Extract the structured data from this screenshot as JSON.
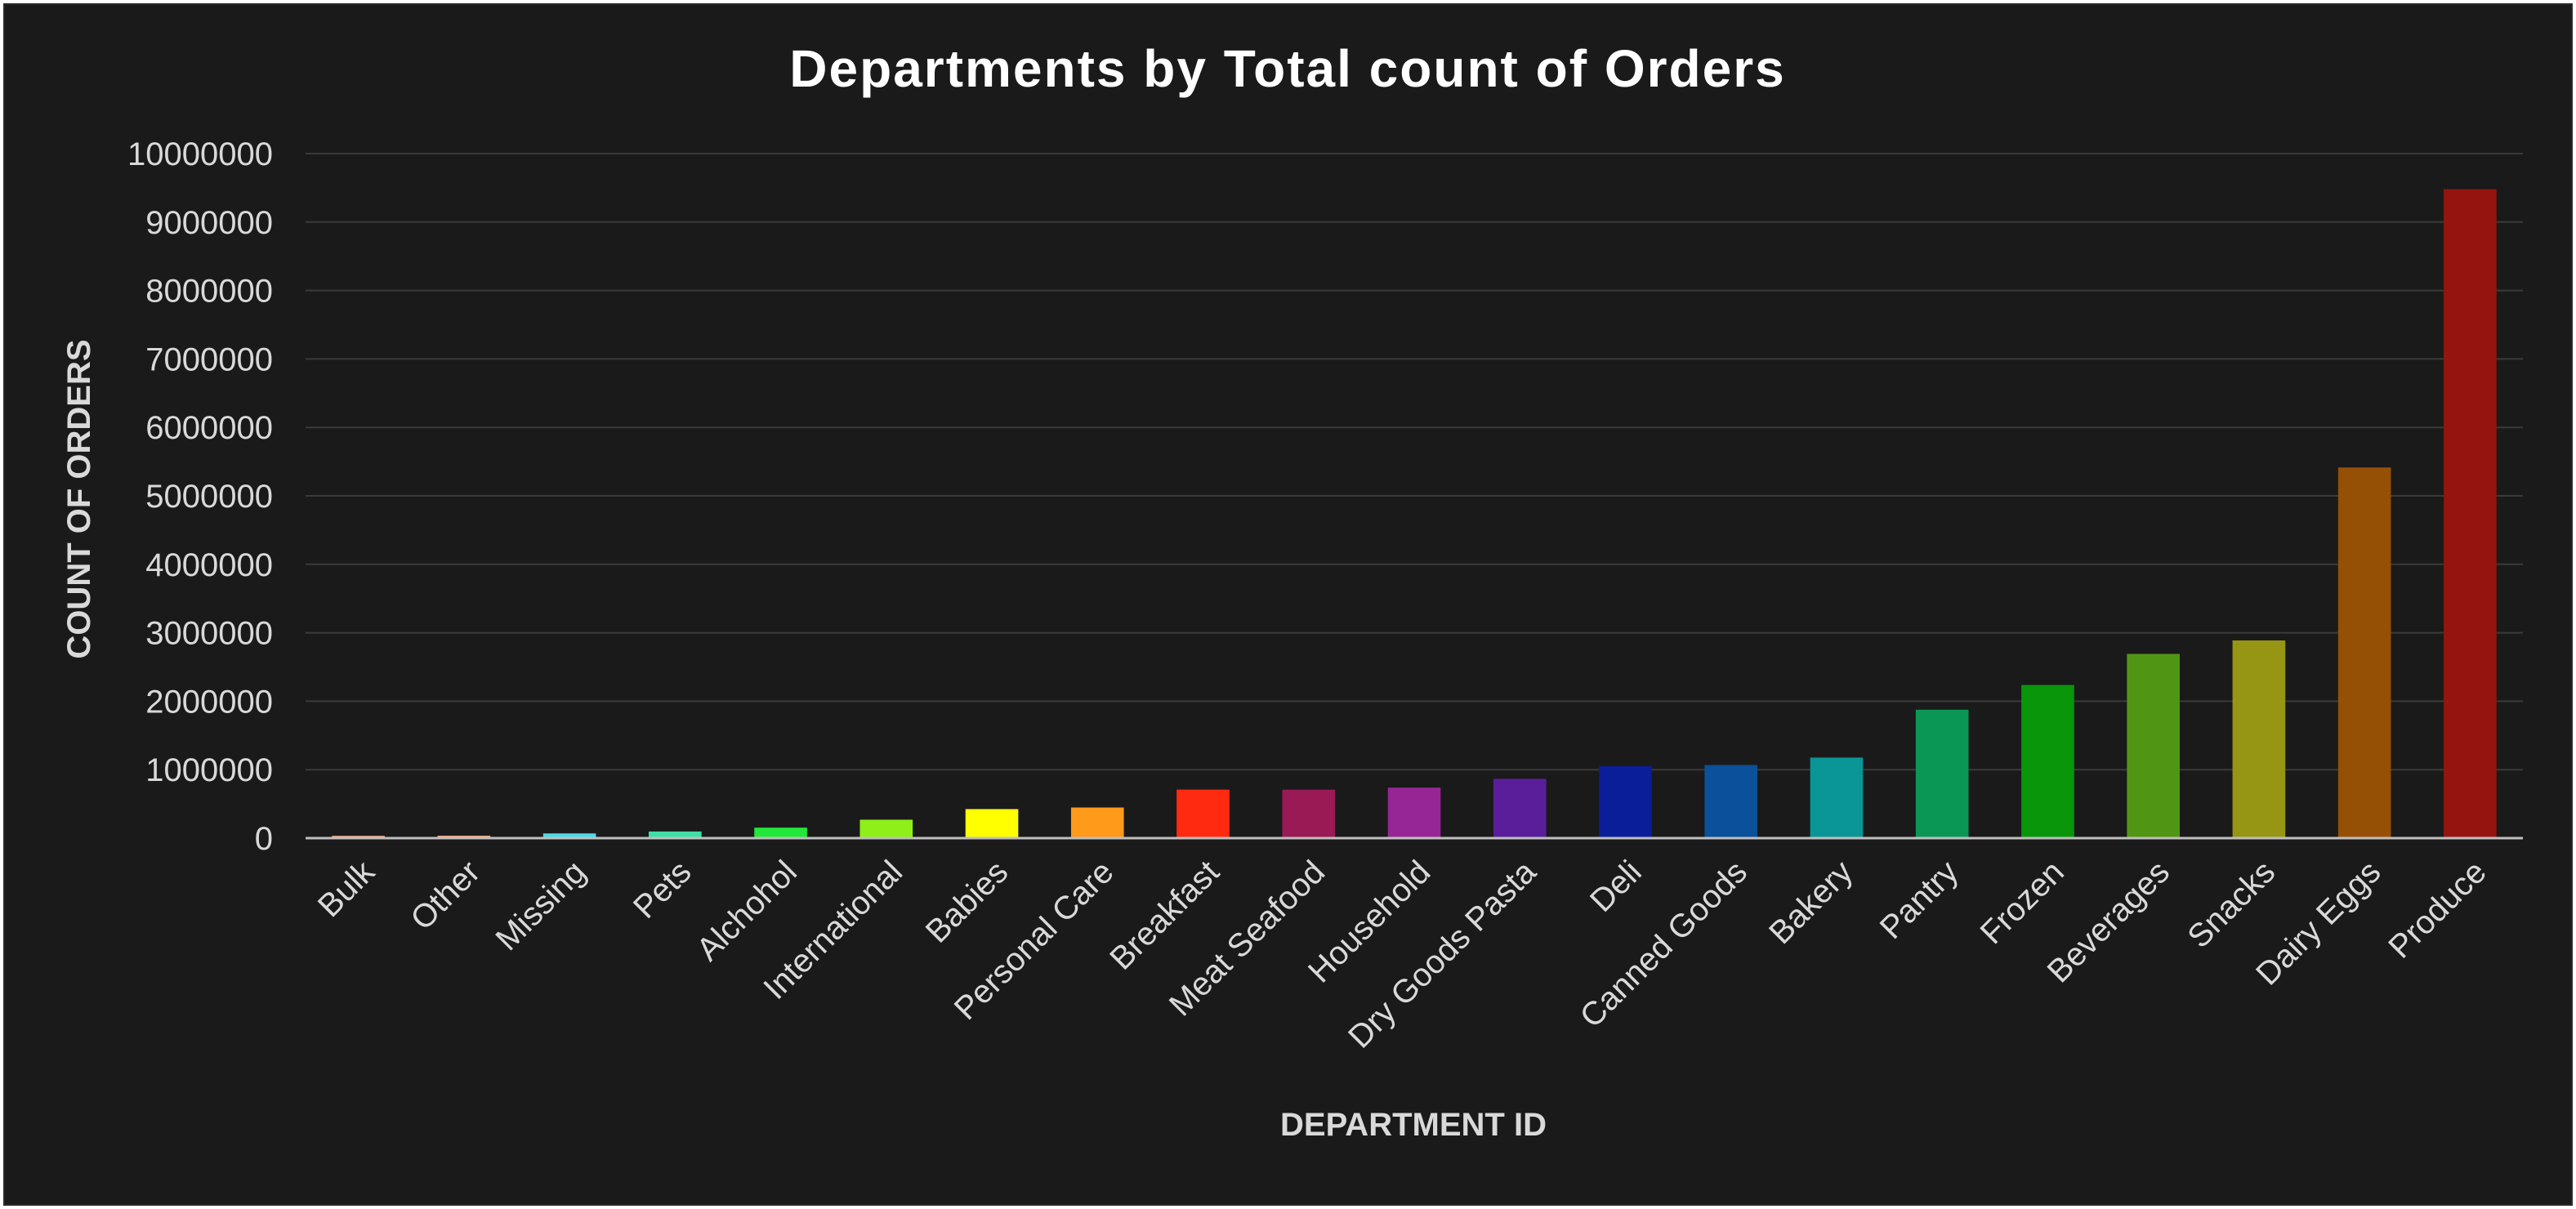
{
  "chart_data": {
    "type": "bar",
    "title": "Departments by Total count of Orders",
    "xlabel": "DEPARTMENT ID",
    "ylabel": "COUNT OF ORDERS",
    "ylim": [
      0,
      10000000
    ],
    "yticks": [
      "0",
      "1000000",
      "2000000",
      "3000000",
      "4000000",
      "5000000",
      "6000000",
      "7000000",
      "8000000",
      "9000000",
      "10000000"
    ],
    "grid": true,
    "categories": [
      "Bulk",
      "Other",
      "Missing",
      "Pets",
      "Alchohol",
      "International",
      "Babies",
      "Personal Care",
      "Breakfast",
      "Meat Seafood",
      "Household",
      "Dry Goods Pasta",
      "Deli",
      "Canned Goods",
      "Bakery",
      "Pantry",
      "Frozen",
      "Beverages",
      "Snacks",
      "Dairy Eggs",
      "Produce"
    ],
    "values": [
      34000,
      36000,
      69000,
      97000,
      153000,
      269000,
      424000,
      447000,
      709000,
      708000,
      738000,
      866000,
      1051000,
      1068000,
      1177000,
      1876000,
      2237000,
      2691000,
      2888000,
      5415000,
      9480000
    ],
    "colors": [
      "#f4a582",
      "#f4a582",
      "#4dd9e8",
      "#3ee0a8",
      "#22e83a",
      "#8ef018",
      "#ffff00",
      "#ff9a1a",
      "#ff2a10",
      "#9a1a55",
      "#962596",
      "#5a1e9a",
      "#0a1e9a",
      "#0a509a",
      "#0a9696",
      "#0a9655",
      "#0a960a",
      "#509614",
      "#969614",
      "#965005",
      "#961410"
    ]
  }
}
